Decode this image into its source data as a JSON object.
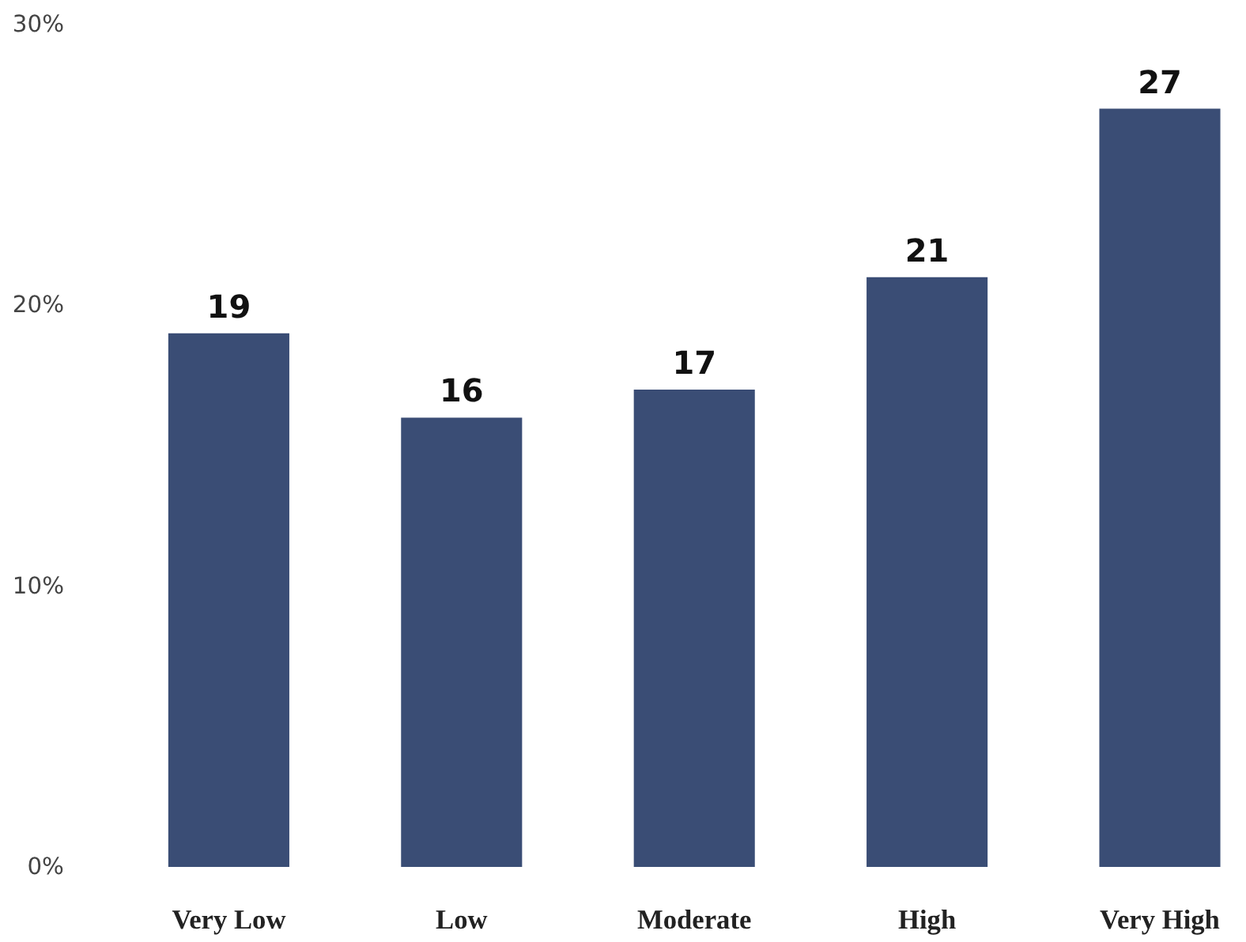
{
  "chart_data": {
    "type": "bar",
    "categories": [
      "Very Low",
      "Low",
      "Moderate",
      "High",
      "Very High"
    ],
    "values": [
      19,
      16,
      17,
      21,
      27
    ],
    "color": "#3a4d75",
    "data_labels": true,
    "ylim": [
      0,
      30
    ],
    "yticks": [
      {
        "value": 0,
        "label": "0%"
      },
      {
        "value": 10,
        "label": "10%"
      },
      {
        "value": 20,
        "label": "20%"
      },
      {
        "value": 30,
        "label": "30%"
      }
    ],
    "grid": false
  }
}
